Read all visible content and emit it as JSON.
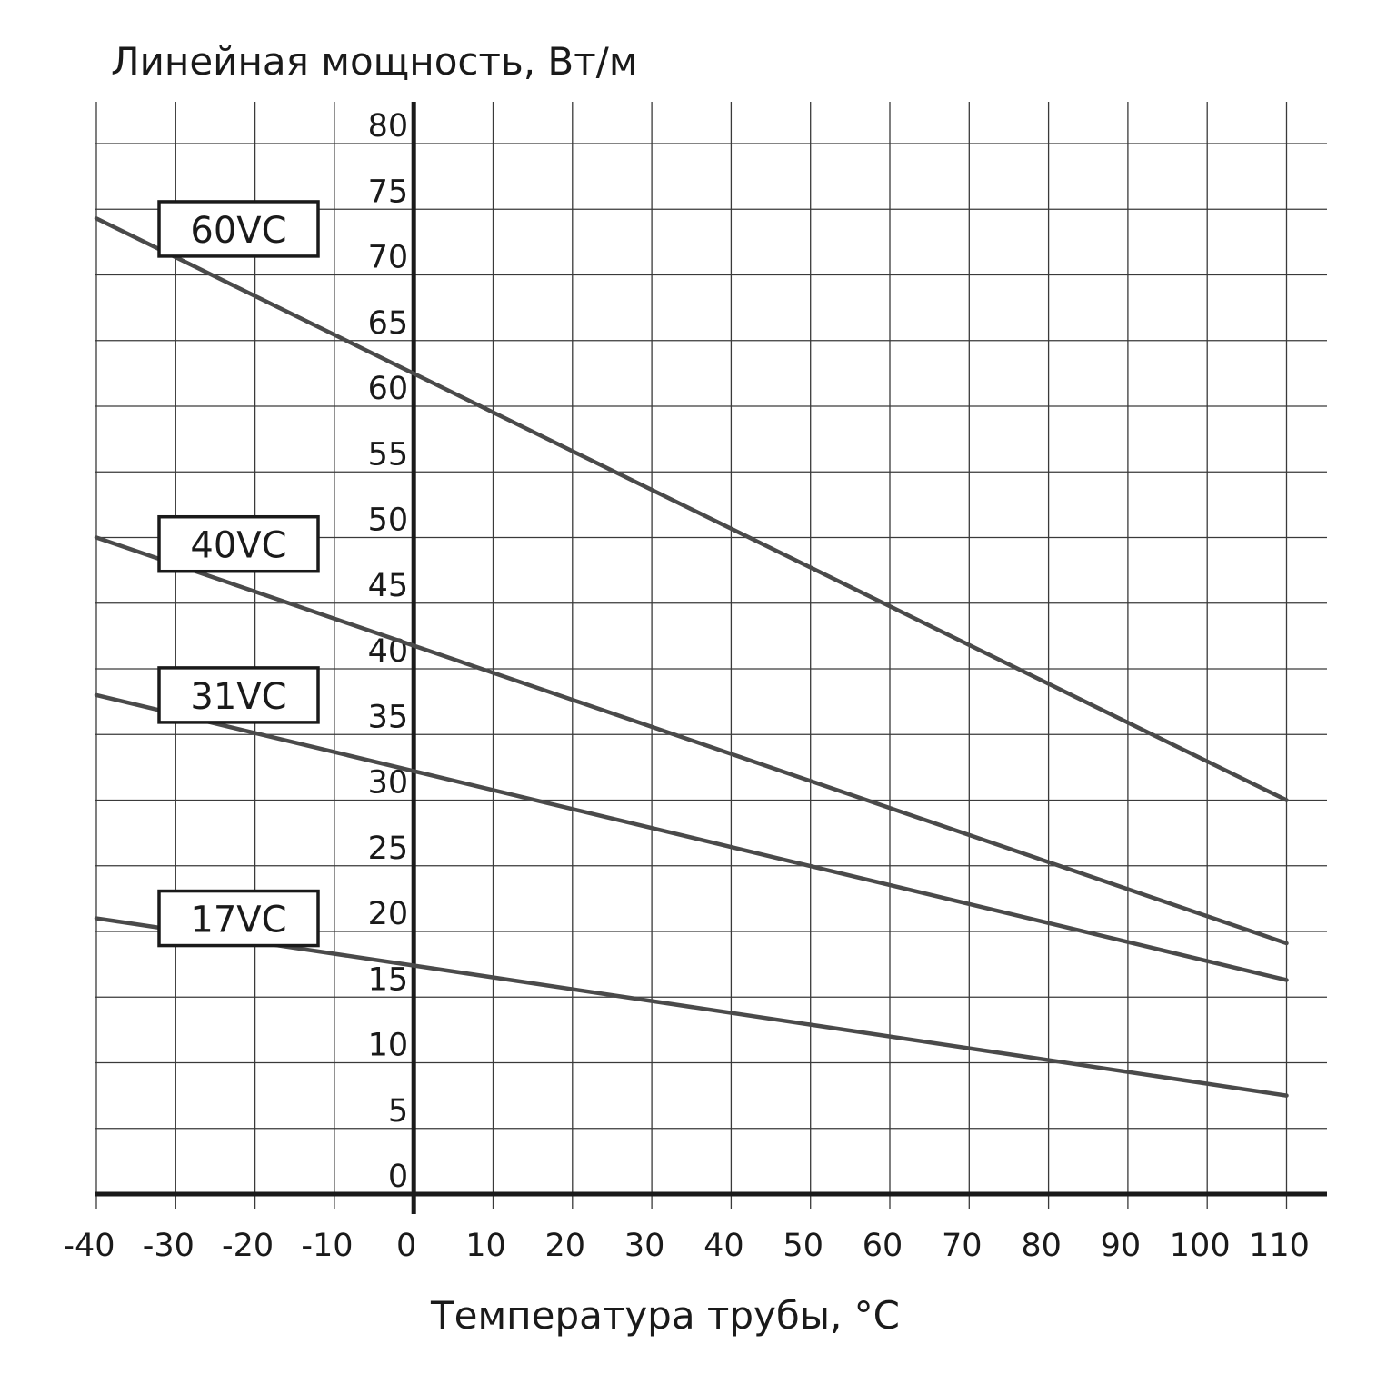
{
  "chart_data": {
    "type": "line",
    "title": "",
    "xlabel": "Температура трубы, °C",
    "ylabel": "Линейная мощность, Вт/м",
    "xlim": [
      -40,
      115
    ],
    "ylim": [
      0,
      83
    ],
    "x_ticks": [
      -40,
      -30,
      -20,
      -10,
      0,
      10,
      20,
      30,
      40,
      50,
      60,
      70,
      80,
      90,
      100,
      110
    ],
    "x_tick_labels": [
      "-40",
      "-30",
      "-20",
      "-10",
      "0",
      "10",
      "20",
      "30",
      "40",
      "50",
      "60",
      "70",
      "80",
      "90",
      "100",
      "110"
    ],
    "y_ticks": [
      0,
      5,
      10,
      15,
      20,
      25,
      30,
      35,
      40,
      45,
      50,
      55,
      60,
      65,
      70,
      75,
      80
    ],
    "y_tick_labels": [
      "0",
      "5",
      "10",
      "15",
      "20",
      "25",
      "30",
      "35",
      "40",
      "45",
      "50",
      "55",
      "60",
      "65",
      "70",
      "75",
      "80"
    ],
    "grid": true,
    "series": [
      {
        "name": "60VC",
        "x": [
          -40,
          110
        ],
        "values": [
          74.3,
          30.0
        ],
        "label_value": 73.5,
        "color": "#4a4a4a"
      },
      {
        "name": "40VC",
        "x": [
          -40,
          110
        ],
        "values": [
          50.0,
          19.1
        ],
        "label_value": 49.5,
        "color": "#4a4a4a"
      },
      {
        "name": "31VC",
        "x": [
          -40,
          110
        ],
        "values": [
          38.0,
          16.3
        ],
        "label_value": 38.0,
        "color": "#4a4a4a"
      },
      {
        "name": "17VC",
        "x": [
          -40,
          110
        ],
        "values": [
          21.0,
          7.5
        ],
        "label_value": 21.0,
        "color": "#4a4a4a"
      }
    ]
  }
}
